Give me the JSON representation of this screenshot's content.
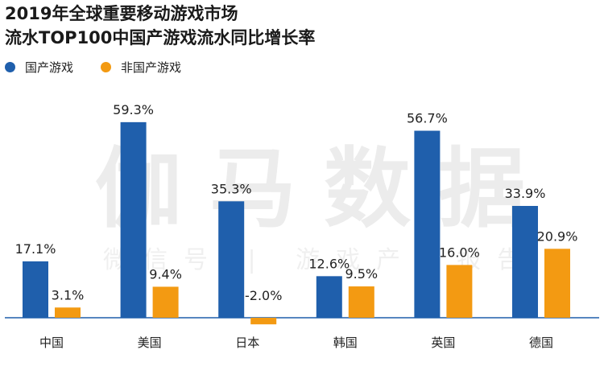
{
  "chart_data": {
    "type": "bar",
    "title": [
      "2019年全球重要移动游戏市场",
      "流水TOP100中国产游戏流水同比增长率"
    ],
    "categories": [
      "中国",
      "美国",
      "日本",
      "韩国",
      "英国",
      "德国"
    ],
    "series": [
      {
        "name": "国产游戏",
        "color": "#1f5fac",
        "values": [
          17.1,
          59.3,
          35.3,
          12.6,
          56.7,
          33.9
        ],
        "labels": [
          "17.1%",
          "59.3%",
          "35.3%",
          "12.6%",
          "56.7%",
          "33.9%"
        ]
      },
      {
        "name": "非国产游戏",
        "color": "#f39a12",
        "values": [
          3.1,
          9.4,
          -2.0,
          9.5,
          16.0,
          20.9
        ],
        "labels": [
          "3.1%",
          "9.4%",
          "-2.0%",
          "9.5%",
          "16.0%",
          "20.9%"
        ]
      }
    ],
    "ylim": [
      -3,
      65
    ],
    "grid": false,
    "legend_position": "top-left"
  },
  "watermark": {
    "main": "伽马数据",
    "sub": "微信号 | 游戏产业报告"
  }
}
